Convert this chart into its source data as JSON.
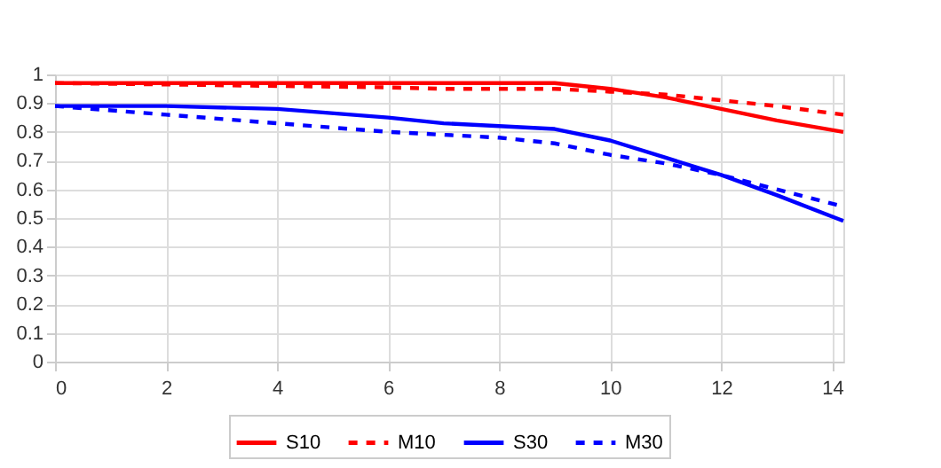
{
  "chart_data": {
    "type": "line",
    "xlim": [
      0,
      14.2
    ],
    "xticks": [
      0,
      2,
      4,
      6,
      8,
      10,
      12,
      14
    ],
    "ylim": [
      0,
      1
    ],
    "yticks": [
      0,
      0.1,
      0.2,
      0.3,
      0.4,
      0.5,
      0.6,
      0.7,
      0.8,
      0.9,
      1
    ],
    "grid": true,
    "legend": "bottom",
    "x": [
      0,
      2,
      4,
      6,
      7,
      8,
      9,
      10,
      11,
      12,
      13,
      14.2
    ],
    "series": [
      {
        "name": "S10",
        "color": "#ff0000",
        "line_style": "solid",
        "values": [
          0.97,
          0.97,
          0.97,
          0.97,
          0.97,
          0.97,
          0.97,
          0.95,
          0.92,
          0.88,
          0.84,
          0.8
        ]
      },
      {
        "name": "M10",
        "color": "#ff0000",
        "line_style": "dashed",
        "values": [
          0.97,
          0.965,
          0.96,
          0.955,
          0.95,
          0.95,
          0.95,
          0.94,
          0.93,
          0.91,
          0.89,
          0.86
        ]
      },
      {
        "name": "S30",
        "color": "#0000ff",
        "line_style": "solid",
        "values": [
          0.89,
          0.89,
          0.88,
          0.85,
          0.83,
          0.82,
          0.81,
          0.77,
          0.71,
          0.65,
          0.58,
          0.49
        ]
      },
      {
        "name": "M30",
        "color": "#0000ff",
        "line_style": "dashed",
        "values": [
          0.89,
          0.86,
          0.83,
          0.8,
          0.79,
          0.78,
          0.76,
          0.72,
          0.69,
          0.65,
          0.6,
          0.54
        ]
      }
    ]
  }
}
